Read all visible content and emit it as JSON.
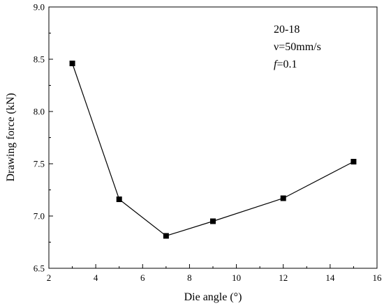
{
  "chart_data": {
    "type": "line",
    "title": "",
    "xlabel": "Die angle (°)",
    "ylabel": "Drawing force (kN)",
    "xlim": [
      2,
      16
    ],
    "ylim": [
      6.5,
      9.0
    ],
    "xticks": [
      "2",
      "4",
      "6",
      "8",
      "10",
      "12",
      "14",
      "16"
    ],
    "yticks": [
      "6.5",
      "7.0",
      "7.5",
      "8.0",
      "8.5",
      "9.0"
    ],
    "grid": false,
    "series": [
      {
        "x": [
          3,
          5,
          7,
          9,
          12,
          15
        ],
        "y": [
          8.46,
          7.16,
          6.81,
          6.95,
          7.17,
          7.52
        ],
        "marker": "square",
        "color": "#000000"
      }
    ],
    "annotations": [
      "20-18",
      "ν=50mm/s",
      "f=0.1"
    ]
  }
}
